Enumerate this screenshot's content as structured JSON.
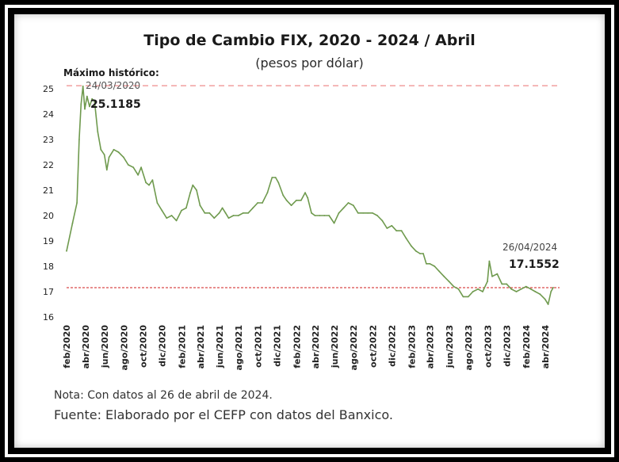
{
  "chart_data": {
    "type": "line",
    "title": "Tipo de Cambio FIX, 2020 - 2024 / Abril",
    "subtitle": "(pesos por dólar)",
    "xlabel": "",
    "ylabel": "",
    "ylim": [
      16,
      25
    ],
    "yticks": [
      "16",
      "17",
      "18",
      "19",
      "20",
      "21",
      "22",
      "23",
      "24",
      "25"
    ],
    "x_tick_labels": [
      "feb/2020",
      "abr/2020",
      "jun/2020",
      "ago/2020",
      "oct/2020",
      "dic/2020",
      "feb/2021",
      "abr/2021",
      "jun/2021",
      "ago/2021",
      "oct/2021",
      "dic/2021",
      "feb/2022",
      "abr/2022",
      "jun/2022",
      "ago/2022",
      "oct/2022",
      "dic/2022",
      "feb/2023",
      "abr/2023",
      "jun/2023",
      "ago/2023",
      "oct/2023",
      "dic/2023",
      "feb/2024",
      "abr/2024"
    ],
    "grid": false,
    "series": [
      {
        "color": "#6f9a4e",
        "x": [
          "2020-02-01",
          "2020-02-20",
          "2020-03-05",
          "2020-03-12",
          "2020-03-18",
          "2020-03-24",
          "2020-03-30",
          "2020-04-06",
          "2020-04-14",
          "2020-04-22",
          "2020-04-30",
          "2020-05-10",
          "2020-05-20",
          "2020-05-31",
          "2020-06-08",
          "2020-06-15",
          "2020-06-30",
          "2020-07-15",
          "2020-07-31",
          "2020-08-15",
          "2020-08-31",
          "2020-09-15",
          "2020-09-25",
          "2020-10-10",
          "2020-10-20",
          "2020-10-31",
          "2020-11-15",
          "2020-11-30",
          "2020-12-15",
          "2020-12-31",
          "2021-01-15",
          "2021-01-31",
          "2021-02-15",
          "2021-02-28",
          "2021-03-08",
          "2021-03-20",
          "2021-03-31",
          "2021-04-15",
          "2021-04-30",
          "2021-05-15",
          "2021-05-31",
          "2021-06-10",
          "2021-06-20",
          "2021-06-30",
          "2021-07-15",
          "2021-07-31",
          "2021-08-15",
          "2021-08-31",
          "2021-09-15",
          "2021-09-30",
          "2021-10-15",
          "2021-10-31",
          "2021-11-15",
          "2021-11-26",
          "2021-12-05",
          "2021-12-20",
          "2021-12-31",
          "2022-01-15",
          "2022-01-31",
          "2022-02-15",
          "2022-02-28",
          "2022-03-08",
          "2022-03-20",
          "2022-03-31",
          "2022-04-15",
          "2022-04-30",
          "2022-05-15",
          "2022-05-31",
          "2022-06-15",
          "2022-06-30",
          "2022-07-15",
          "2022-07-31",
          "2022-08-15",
          "2022-08-31",
          "2022-09-15",
          "2022-09-30",
          "2022-10-15",
          "2022-10-31",
          "2022-11-15",
          "2022-11-30",
          "2022-12-15",
          "2022-12-31",
          "2023-01-15",
          "2023-01-31",
          "2023-02-15",
          "2023-02-28",
          "2023-03-10",
          "2023-03-20",
          "2023-03-31",
          "2023-04-15",
          "2023-04-30",
          "2023-05-15",
          "2023-05-31",
          "2023-06-15",
          "2023-06-30",
          "2023-07-15",
          "2023-07-31",
          "2023-08-15",
          "2023-08-31",
          "2023-09-15",
          "2023-09-30",
          "2023-10-06",
          "2023-10-15",
          "2023-10-31",
          "2023-11-15",
          "2023-11-30",
          "2023-12-15",
          "2023-12-31",
          "2024-01-15",
          "2024-01-31",
          "2024-02-15",
          "2024-02-29",
          "2024-03-15",
          "2024-03-31",
          "2024-04-10",
          "2024-04-19",
          "2024-04-26"
        ],
        "y": [
          18.6,
          19.7,
          20.5,
          23.0,
          24.4,
          25.1,
          24.2,
          24.7,
          24.3,
          24.6,
          24.5,
          23.3,
          22.6,
          22.4,
          21.8,
          22.3,
          22.6,
          22.5,
          22.3,
          22.0,
          21.9,
          21.6,
          21.9,
          21.3,
          21.2,
          21.4,
          20.5,
          20.2,
          19.9,
          20.0,
          19.8,
          20.2,
          20.3,
          20.9,
          21.2,
          21.0,
          20.4,
          20.1,
          20.1,
          19.9,
          20.1,
          20.3,
          20.1,
          19.9,
          20.0,
          20.0,
          20.1,
          20.1,
          20.3,
          20.5,
          20.5,
          20.9,
          21.5,
          21.5,
          21.3,
          20.8,
          20.6,
          20.4,
          20.6,
          20.6,
          20.9,
          20.7,
          20.1,
          20.0,
          20.0,
          20.0,
          20.0,
          19.7,
          20.1,
          20.3,
          20.5,
          20.4,
          20.1,
          20.1,
          20.1,
          20.1,
          20.0,
          19.8,
          19.5,
          19.6,
          19.4,
          19.4,
          19.1,
          18.8,
          18.6,
          18.5,
          18.5,
          18.1,
          18.1,
          18.0,
          17.8,
          17.6,
          17.4,
          17.2,
          17.1,
          16.8,
          16.8,
          17.0,
          17.1,
          17.0,
          17.4,
          18.2,
          17.6,
          17.7,
          17.3,
          17.3,
          17.1,
          17.0,
          17.1,
          17.2,
          17.1,
          17.0,
          16.9,
          16.7,
          16.5,
          17.0,
          17.16
        ]
      }
    ],
    "reference_lines": [
      {
        "value": 25.1185,
        "color": "#f2a6a6"
      },
      {
        "value": 17.1552,
        "color": "#d94a4a"
      }
    ],
    "annotations": {
      "max_heading": "Máximo histórico:",
      "max_date": "24/03/2020",
      "max_value": "25.1185",
      "last_date": "26/04/2024",
      "last_value": "17.1552"
    }
  },
  "footer": {
    "note": "Nota: Con datos al 26 de abril de 2024.",
    "source": "Fuente: Elaborado por el CEFP con datos del Banxico."
  }
}
